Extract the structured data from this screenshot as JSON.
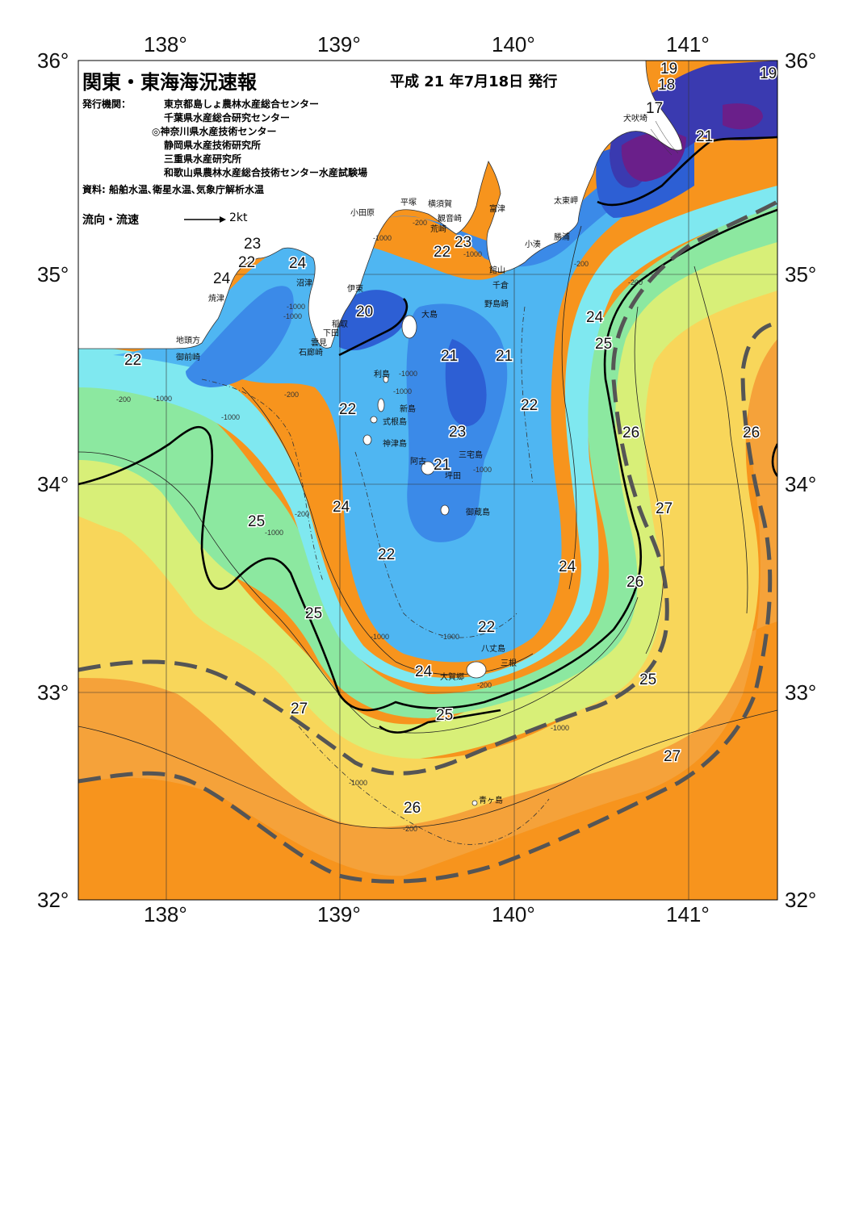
{
  "header": {
    "title": "関東・東海海況速報",
    "issue_date": "平成 21 年7月18日 発行",
    "issuer_label": "発行機関：",
    "issuers": [
      "東京都島しょ農林水産総合センター",
      "千葉県水産総合研究センター",
      "◎神奈川県水産技術センター",
      "静岡県水産技術研究所",
      "三重県水産研究所",
      "和歌山県農林水産総合技術センター水産試験場"
    ],
    "source": "資料: 船舶水温､衛星水温､気象庁解析水温",
    "legend_label": "流向・流速",
    "legend_speed": "2kt"
  },
  "axes": {
    "top_lon": [
      "138°",
      "139°",
      "140°",
      "141°"
    ],
    "bottom_lon": [
      "138°",
      "139°",
      "140°",
      "141°"
    ],
    "left_lat": [
      "36°",
      "35°",
      "34°",
      "33°",
      "32°"
    ],
    "right_lat": [
      "36°",
      "35°",
      "34°",
      "33°",
      "32°"
    ]
  },
  "colors": {
    "t17": "#6a1f8a",
    "t19": "#3a3ab0",
    "t20": "#2d5fd4",
    "t21": "#3b8ae8",
    "t22": "#4fb6f2",
    "t23": "#7fe8f0",
    "t24": "#8ce8a0",
    "t25": "#d8ef78",
    "t26": "#f8d65a",
    "t27": "#f5a23a",
    "t28": "#f7941d",
    "land": "#ffffff",
    "kuroshio": "#555555"
  },
  "isotherm_labels": [
    "19",
    "19",
    "18",
    "17",
    "21",
    "23",
    "22",
    "24",
    "24",
    "22",
    "23",
    "22",
    "20",
    "21",
    "21",
    "22",
    "23",
    "22",
    "21",
    "24",
    "24",
    "25",
    "26",
    "26",
    "27",
    "25",
    "24",
    "22",
    "25",
    "22",
    "24",
    "26",
    "25",
    "27",
    "27",
    "26",
    "25"
  ],
  "depth_labels": [
    "-1000",
    "-200",
    "-1000",
    "-200",
    "-200",
    "-1000",
    "-200",
    "-1000",
    "-1000",
    "-200",
    "-200",
    "-1000",
    "-1000",
    "-1000",
    "-1000",
    "-1000",
    "-1000",
    "-200",
    "-1000",
    "-1000",
    "-200",
    "-1000"
  ],
  "places": [
    "犬吠埼",
    "太東岬",
    "勝浦",
    "小湊",
    "館山",
    "千倉",
    "野島崎",
    "富津",
    "横須賀",
    "観音崎",
    "荒崎",
    "平塚",
    "小田原",
    "沼津",
    "伊東",
    "焼津",
    "稲取",
    "下田",
    "雲見",
    "石廊崎",
    "地頭方",
    "御前崎",
    "大島",
    "利島",
    "新島",
    "式根島",
    "神津島",
    "三宅島",
    "阿古",
    "坪田",
    "御蔵島",
    "八丈島",
    "三根",
    "大賀郷",
    "青ヶ島"
  ]
}
